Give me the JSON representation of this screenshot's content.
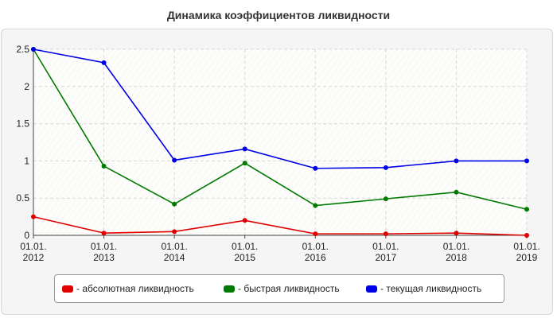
{
  "chart_data": {
    "type": "line",
    "title": "Динамика коэффициентов ликвидности",
    "categories": [
      [
        "01.01.",
        "2012"
      ],
      [
        "01.01.",
        "2013"
      ],
      [
        "01.01.",
        "2014"
      ],
      [
        "01.01.",
        "2015"
      ],
      [
        "01.01.",
        "2016"
      ],
      [
        "01.01.",
        "2017"
      ],
      [
        "01.01.",
        "2018"
      ],
      [
        "01.01.",
        "2019"
      ]
    ],
    "yticks": [
      "0",
      "0.5",
      "1",
      "1.5",
      "2",
      "2.5"
    ],
    "ylim": [
      0,
      2.5
    ],
    "grid": true,
    "legend_position": "bottom",
    "series": [
      {
        "name": "- абсолютная ликвидность",
        "color": "#e00000",
        "values": [
          0.25,
          0.03,
          0.05,
          0.2,
          0.02,
          0.02,
          0.03,
          0.0
        ]
      },
      {
        "name": "- быстрая ликвидность",
        "color": "#007a00",
        "values": [
          2.5,
          0.93,
          0.42,
          0.97,
          0.4,
          0.49,
          0.58,
          0.35
        ]
      },
      {
        "name": "- текущая ликвидность",
        "color": "#0000e6",
        "values": [
          2.5,
          2.32,
          1.01,
          1.16,
          0.9,
          0.91,
          1.0,
          1.0
        ]
      }
    ]
  }
}
